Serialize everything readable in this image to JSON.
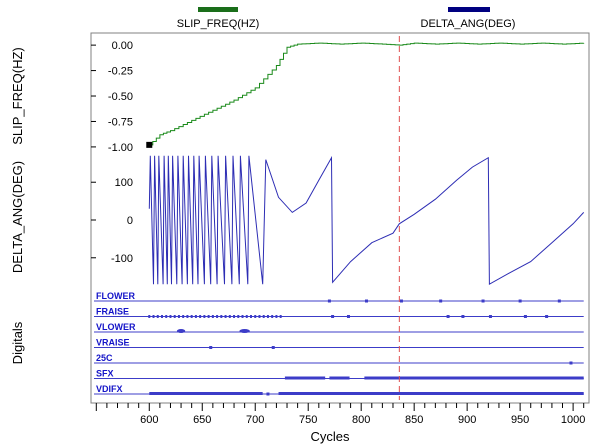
{
  "chart_data": {
    "type": "line",
    "xlabel": "Cycles",
    "xlim": [
      545,
      1015
    ],
    "xticks": [
      600,
      650,
      700,
      750,
      800,
      850,
      900,
      950,
      1000
    ],
    "cursor_x": 836,
    "colors": {
      "slip": "#1a8a1a",
      "delta": "#2d2db4",
      "digital": "#3c3cc8",
      "digital_label": "#1414c8",
      "cursor": "#e05050",
      "marker": "#000000"
    },
    "legend": [
      {
        "name": "SLIP_FREQ(HZ)",
        "color": "#1a6e1a"
      },
      {
        "name": "DELTA_ANG(DEG)",
        "color": "#000080"
      }
    ],
    "panels": {
      "slip": {
        "ylabel": "SLIP_FREQ(HZ)",
        "ylim": [
          -1.05,
          0.07
        ],
        "yticks": [
          0.0,
          -0.25,
          -0.5,
          -0.75,
          -1.0
        ],
        "yticklabels": [
          "0.00",
          "-0.25",
          "-0.50",
          "-0.75",
          "-1.00"
        ]
      },
      "delta": {
        "ylabel": "DELTA_ANG(DEG)",
        "ylim": [
          -180,
          180
        ],
        "yticks": [
          100,
          0,
          -100
        ],
        "yticklabels": [
          "100",
          "0",
          "-100"
        ]
      },
      "digitals": {
        "ylabel": "Digitals",
        "channels": [
          "FLOWER",
          "FRAISE",
          "VLOWER",
          "VRAISE",
          "25C",
          "SFX",
          "VDIFX"
        ]
      }
    },
    "series": [
      {
        "name": "SLIP_FREQ(HZ)",
        "x": [
          600,
          610,
          620,
          640,
          660,
          680,
          700,
          720,
          730,
          740,
          760,
          780,
          800,
          820,
          836,
          850,
          870,
          890,
          910,
          930,
          950,
          970,
          990,
          1010
        ],
        "y": [
          -0.98,
          -0.88,
          -0.84,
          -0.74,
          -0.64,
          -0.54,
          -0.42,
          -0.2,
          -0.02,
          0.01,
          0.02,
          0.01,
          0.02,
          0.01,
          0.0,
          0.02,
          0.01,
          0.02,
          0.01,
          0.02,
          0.01,
          0.02,
          0.01,
          0.02
        ]
      },
      {
        "name": "DELTA_ANG(DEG)",
        "x": [
          600,
          601,
          604,
          605,
          608,
          609,
          613,
          614,
          617,
          618,
          621,
          622,
          626,
          627,
          631,
          632,
          636,
          637,
          641,
          642,
          646,
          647,
          652,
          653,
          658,
          659,
          664,
          665,
          671,
          672,
          678,
          679,
          685,
          686,
          693,
          694,
          707,
          710,
          722,
          735,
          748,
          760,
          772,
          773,
          790,
          810,
          830,
          836,
          850,
          870,
          890,
          905,
          920,
          921,
          940,
          960,
          980,
          1000,
          1010
        ],
        "y": [
          30,
          170,
          -170,
          170,
          -170,
          170,
          -170,
          170,
          -170,
          170,
          -170,
          170,
          -170,
          170,
          -170,
          170,
          -170,
          170,
          -170,
          170,
          -170,
          170,
          -170,
          170,
          -170,
          170,
          -170,
          170,
          -170,
          170,
          -170,
          170,
          -170,
          170,
          -170,
          170,
          -170,
          160,
          60,
          20,
          45,
          105,
          165,
          -165,
          -110,
          -60,
          -35,
          -10,
          15,
          55,
          105,
          140,
          165,
          -170,
          -140,
          -110,
          -60,
          -10,
          20
        ]
      }
    ],
    "digital_events": {
      "FLOWER": {
        "dots": [
          770,
          805,
          838,
          875,
          915,
          950,
          987
        ]
      },
      "FRAISE": {
        "dashes": [
          [
            600,
            725
          ]
        ],
        "dots": [
          773,
          788,
          882,
          896,
          922,
          955,
          975
        ]
      },
      "VLOWER": {
        "bumps": [
          [
            627,
            633
          ],
          [
            686,
            694
          ]
        ]
      },
      "VRAISE": {
        "dots": [
          658,
          717
        ]
      },
      "25C": {
        "dots": [
          998
        ]
      },
      "SFX": {
        "bars": [
          [
            728,
            766
          ],
          [
            770,
            789
          ],
          [
            803,
            1010
          ]
        ]
      },
      "VDIFX": {
        "bars": [
          [
            600,
            707
          ],
          [
            722,
            1010
          ]
        ],
        "dots": [
          712
        ]
      }
    }
  }
}
